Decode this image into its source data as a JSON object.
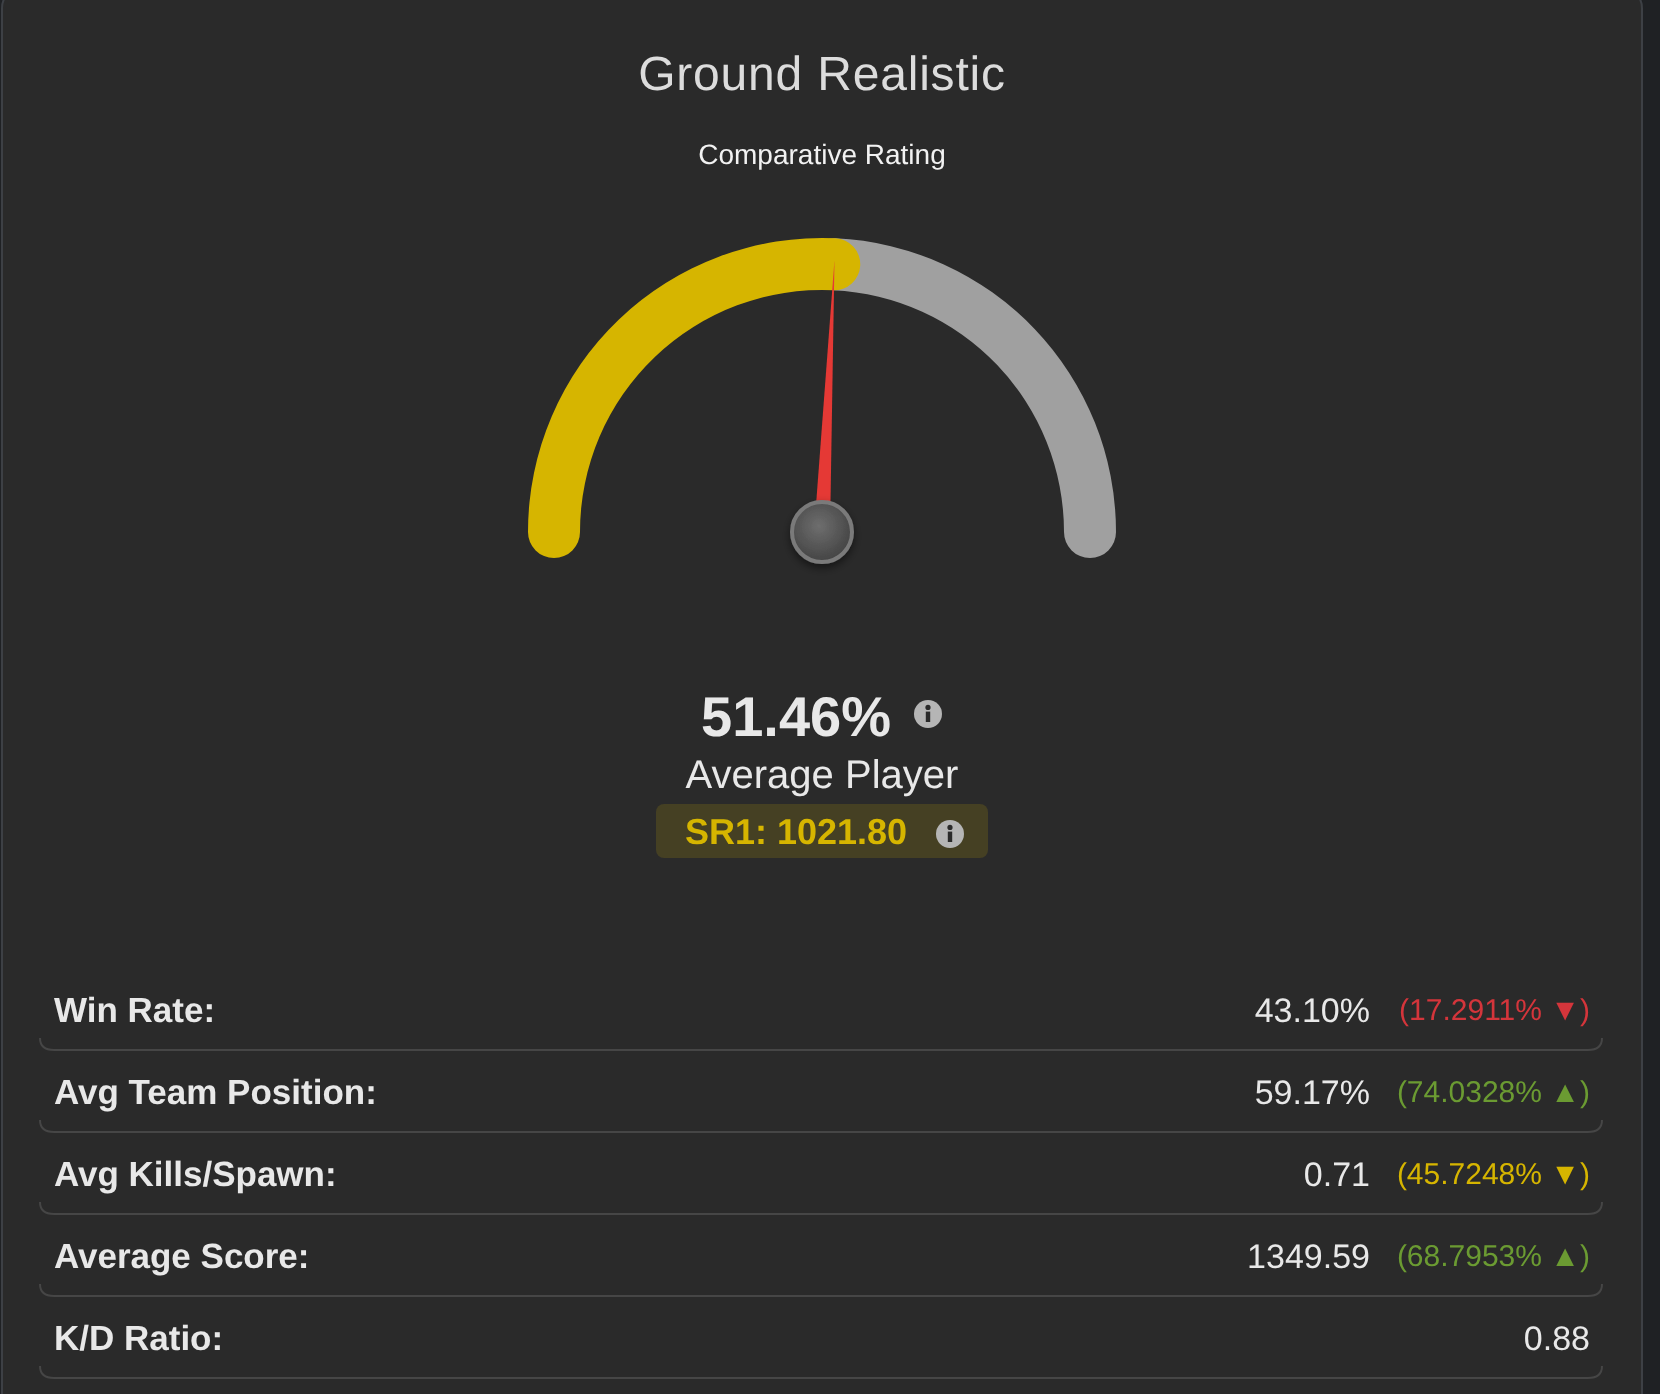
{
  "chart_data": [
    {
      "type": "donut",
      "title": "Ground Realistic",
      "subtitle": "Comparative Rating",
      "categories": [
        null,
        null
      ],
      "values": [
        51.46,
        48.54
      ],
      "colors": [
        "#d6b500",
        "#a0a0a0"
      ],
      "annotations": [
        "51.46%",
        "Average Player",
        "SR1: 1021.80"
      ]
    },
    {
      "type": "other",
      "annotations": [
        "Win Rate:",
        "43.10%",
        "(17.2911% ▼)",
        "Avg Team Position:",
        "59.17%",
        "(74.0328% ▲)",
        "Avg Kills/Spawn:",
        "0.71",
        "(45.7248% ▼)",
        "Average Score:",
        "1349.59",
        "(68.7953% ▲)",
        "K/D Ratio:",
        "0.88"
      ],
      "colors": [
        null,
        null,
        "#d4353b",
        null,
        null,
        "#6b9b32",
        null,
        null,
        "#d6b500",
        null,
        null,
        "#6b9b32",
        null,
        null
      ]
    }
  ]
}
